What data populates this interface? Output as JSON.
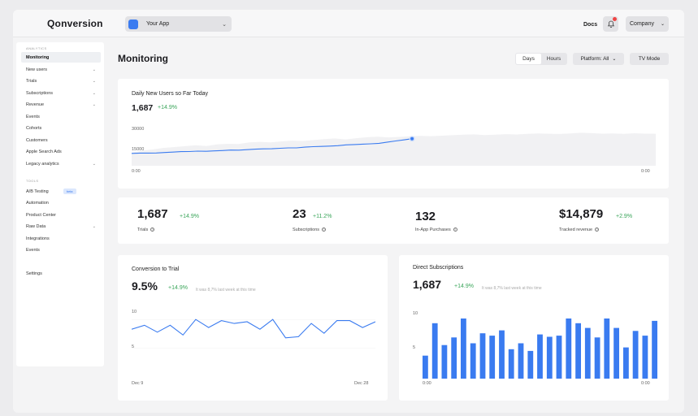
{
  "header": {
    "logo": "Qonversion",
    "app_select": "Your App",
    "docs": "Docs",
    "company": "Company"
  },
  "sidebar": {
    "analytics_label": "ANALYTICS",
    "analytics_items": [
      {
        "label": "Monitoring",
        "active": true
      },
      {
        "label": "New users",
        "chevron": true
      },
      {
        "label": "Trials",
        "chevron": true
      },
      {
        "label": "Subscriptions",
        "chevron": true
      },
      {
        "label": "Revenue",
        "chevron": true
      },
      {
        "label": "Events"
      },
      {
        "label": "Cohorts"
      },
      {
        "label": "Customers"
      },
      {
        "label": "Apple Search Ads"
      },
      {
        "label": "Legacy analytics",
        "chevron": true
      }
    ],
    "tools_label": "TOOLS",
    "tools_items": [
      {
        "label": "A/B Testing",
        "badge": "beta"
      },
      {
        "label": "Automation"
      },
      {
        "label": "Product Center"
      },
      {
        "label": "Raw Data",
        "chevron": true
      },
      {
        "label": "Integrations"
      },
      {
        "label": "Events"
      }
    ],
    "settings": "Settings"
  },
  "main": {
    "title": "Monitoring",
    "toggle": {
      "days": "Days",
      "hours": "Hours",
      "selected": "Days"
    },
    "platform": "Platform: All",
    "tv_mode": "TV Mode"
  },
  "daily_card": {
    "title": "Daily New Users so Far Today",
    "value": "1,687",
    "change": "+14.9%",
    "y_ticks": [
      "30000",
      "15000"
    ],
    "x_start": "0:00",
    "x_end": "0:00"
  },
  "stats": [
    {
      "value": "1,687",
      "change": "+14.9%",
      "label": "Trials"
    },
    {
      "value": "23",
      "change": "+11.2%",
      "label": "Subscriptions"
    },
    {
      "value": "132",
      "change": "",
      "label": "In-App Purchases"
    },
    {
      "value": "$14,879",
      "change": "+2.9%",
      "label": "Tracked revenue"
    }
  ],
  "conversion_card": {
    "title": "Conversion to Trial",
    "value": "9.5%",
    "change": "+14.9%",
    "note": "It was 8,7% last week at this time",
    "y_ticks": [
      "10",
      "5"
    ],
    "x_start": "Dec 9",
    "x_end": "Dec 28"
  },
  "direct_card": {
    "title": "Direct Subscriptions",
    "value": "1,687",
    "change": "+14.9%",
    "note": "It was 8,7% last week at this time",
    "y_ticks": [
      "10",
      "5"
    ],
    "x_start": "0:00",
    "x_end": "0:00"
  },
  "chart_data": [
    {
      "type": "area",
      "title": "Daily New Users so Far Today",
      "x_range": [
        "0:00",
        "0:00"
      ],
      "ylim": [
        0,
        35000
      ],
      "series": [
        {
          "values": [
            10200,
            10500,
            10500,
            10600,
            11000,
            11300,
            11700,
            11800,
            12100,
            12000,
            12300,
            12600,
            13000,
            12900,
            13300,
            13700,
            14000,
            14100,
            14500,
            14800,
            14800,
            15400,
            15800,
            16000,
            16300,
            16600,
            17300,
            17600,
            17900,
            18200,
            18600,
            19600,
            20500,
            21400,
            22400
          ],
          "color": "#3a7bf0"
        }
      ],
      "background_series_values": [
        11000,
        12500,
        13500,
        14800,
        15500,
        16200,
        17000,
        16300,
        17800,
        18200,
        18000,
        19400,
        19800,
        19300,
        20200,
        20800,
        20500,
        21300,
        22000,
        22600,
        21800,
        22800,
        23600,
        24000,
        23500,
        23900,
        24400,
        24800,
        24500,
        24900,
        25300,
        25700,
        26000,
        25400,
        25800,
        26200,
        25900,
        26400,
        26800,
        26500,
        26300,
        26700,
        27300,
        27000,
        26600,
        26800,
        26400,
        26900,
        26600,
        26500
      ]
    },
    {
      "type": "line",
      "title": "Conversion to Trial",
      "x_range": [
        "Dec 9",
        "Dec 28"
      ],
      "ylim": [
        0,
        12
      ],
      "series": [
        {
          "values": [
            8.3,
            9.0,
            7.8,
            9.0,
            7.3,
            10.0,
            8.6,
            9.8,
            9.3,
            9.6,
            8.3,
            10.0,
            6.8,
            7.0,
            9.3,
            7.6,
            9.8,
            9.8,
            8.6,
            9.6
          ],
          "color": "#3a7bf0"
        }
      ]
    },
    {
      "type": "bar",
      "title": "Direct Subscriptions",
      "x_range": [
        "0:00",
        "0:00"
      ],
      "ylim": [
        0,
        12
      ],
      "series": [
        {
          "values": [
            3.9,
            9.4,
            5.7,
            7.0,
            10.2,
            6.0,
            7.7,
            7.3,
            8.2,
            5.0,
            6.0,
            4.7,
            7.5,
            7.1,
            7.3,
            10.2,
            9.4,
            8.6,
            7.0,
            10.2,
            8.6,
            5.3,
            8.1,
            7.3,
            9.8
          ],
          "color": "#3a7bf0"
        }
      ]
    }
  ]
}
